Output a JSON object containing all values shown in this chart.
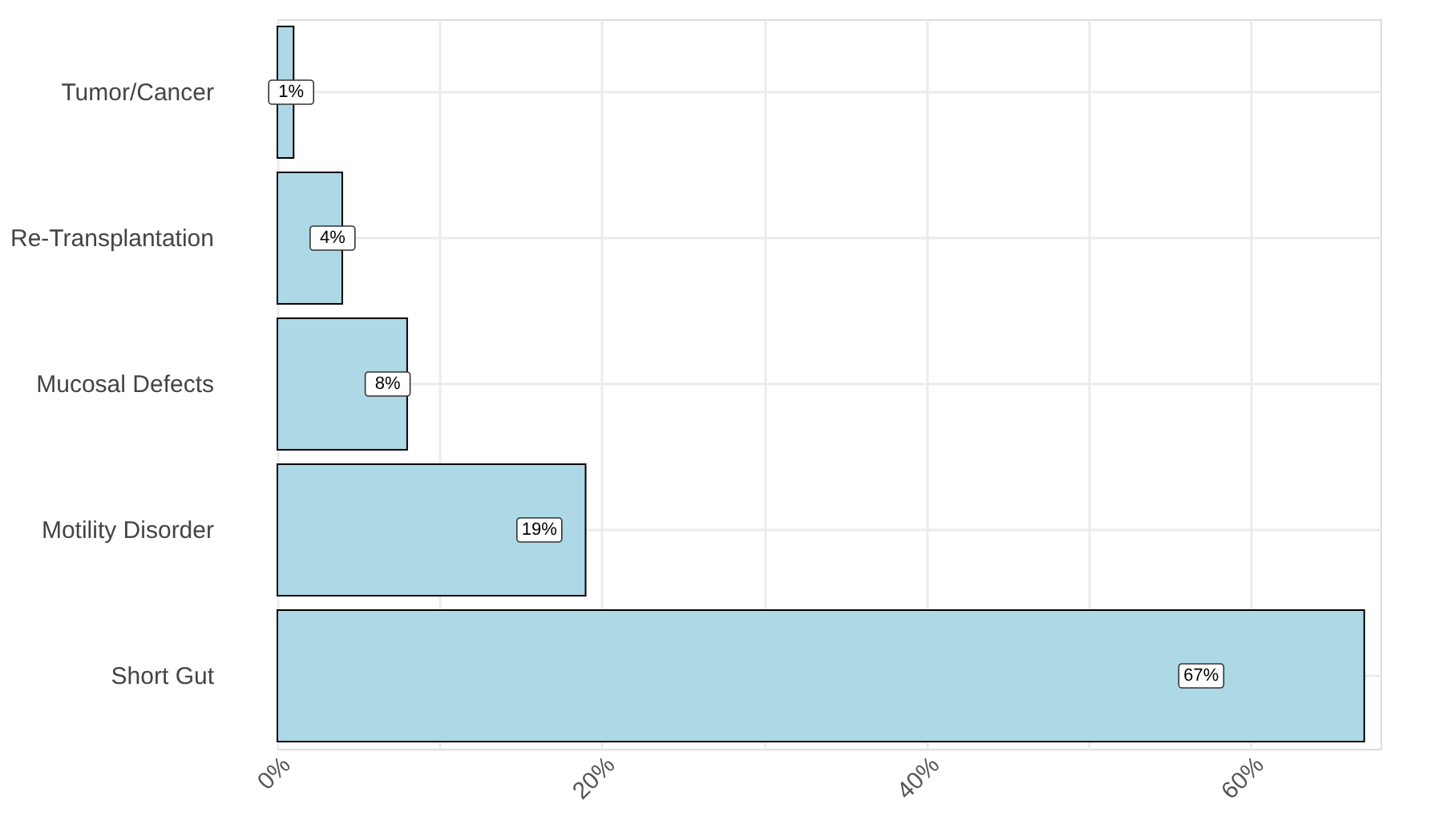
{
  "chart_data": {
    "type": "bar",
    "orientation": "horizontal",
    "categories": [
      "Tumor/Cancer",
      "Re-Transplantation",
      "Mucosal Defects",
      "Motility Disorder",
      "Short Gut"
    ],
    "values": [
      1,
      4,
      8,
      19,
      67
    ],
    "value_labels": [
      "1%",
      "4%",
      "8%",
      "19%",
      "67%"
    ],
    "color": "#add8e6",
    "xlim": [
      0,
      68
    ],
    "xticks": [
      {
        "value": 0,
        "label": "0%"
      },
      {
        "value": 10,
        "label": null
      },
      {
        "value": 20,
        "label": "20%"
      },
      {
        "value": 30,
        "label": null
      },
      {
        "value": 40,
        "label": "40%"
      },
      {
        "value": 50,
        "label": null
      },
      {
        "value": 60,
        "label": "60%"
      }
    ],
    "grid": true
  }
}
